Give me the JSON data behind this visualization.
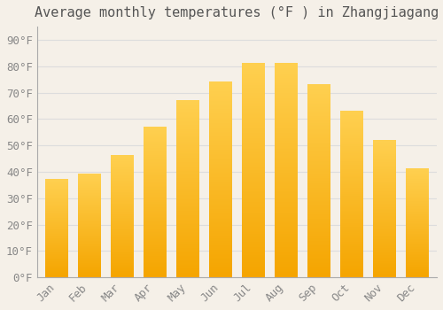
{
  "title": "Average monthly temperatures (°F ) in Zhangjiagang",
  "months": [
    "Jan",
    "Feb",
    "Mar",
    "Apr",
    "May",
    "Jun",
    "Jul",
    "Aug",
    "Sep",
    "Oct",
    "Nov",
    "Dec"
  ],
  "values": [
    37,
    39,
    46,
    57,
    67,
    74,
    81,
    81,
    73,
    63,
    52,
    41
  ],
  "bar_color": "#FFC020",
  "bar_edge_color": "#F5A800",
  "background_color": "#F5F0E8",
  "grid_color": "#DDDDDD",
  "yticks": [
    0,
    10,
    20,
    30,
    40,
    50,
    60,
    70,
    80,
    90
  ],
  "ytick_labels": [
    "0°F",
    "10°F",
    "20°F",
    "30°F",
    "40°F",
    "50°F",
    "60°F",
    "70°F",
    "80°F",
    "90°F"
  ],
  "ylim": [
    0,
    95
  ],
  "title_fontsize": 11,
  "tick_fontsize": 9,
  "font_family": "monospace",
  "tick_color": "#888888",
  "title_color": "#555555"
}
